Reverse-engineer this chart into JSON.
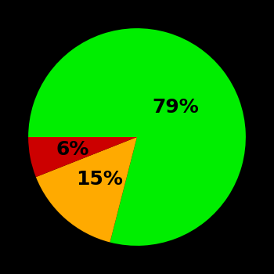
{
  "slices": [
    79,
    15,
    6
  ],
  "colors": [
    "#00ee00",
    "#ffaa00",
    "#cc0000"
  ],
  "labels": [
    "79%",
    "15%",
    "6%"
  ],
  "background_color": "#000000",
  "label_fontsize": 18,
  "label_fontweight": "bold",
  "label_color": "#000000",
  "startangle": 180,
  "counterclock": false,
  "label_radii": [
    0.45,
    0.52,
    0.6
  ],
  "figsize": [
    3.5,
    3.5
  ],
  "dpi": 100
}
